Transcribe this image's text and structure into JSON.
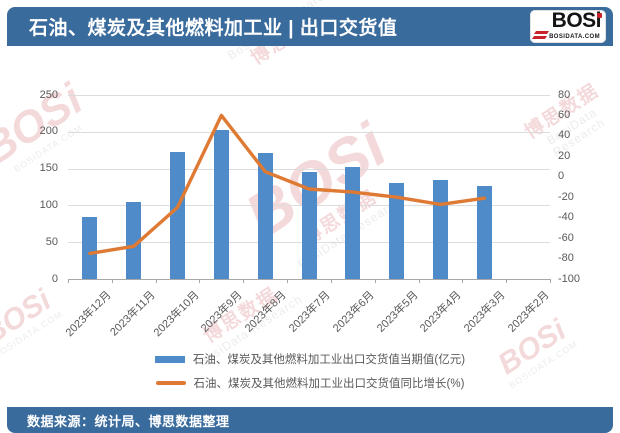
{
  "header": {
    "title": "石油、煤炭及其他燃料加工业 | 出口交货值"
  },
  "logo": {
    "brand": "BOSi",
    "site": "BOSIDATA.COM"
  },
  "watermark": {
    "brand": "BOSi",
    "cn": "博思数据",
    "en": "BosiData Research",
    "site": "BOSIDATA.COM"
  },
  "footer": {
    "source": "数据来源：统计局、博思数据整理"
  },
  "colors": {
    "theme_blue": "#3A6B9D",
    "bar": "#4E8BC8",
    "line": "#DE7A33",
    "grid": "#DCDCDC",
    "axis": "#A8A8A8",
    "tick_text": "#595959"
  },
  "chart_data": {
    "type": "bar",
    "subtype": "combo bar+line, dual axis",
    "title": "石油、煤炭及其他燃料加工业 | 出口交货值",
    "categories": [
      "2023年12月",
      "2023年11月",
      "2023年10月",
      "2023年9月",
      "2023年8月",
      "2023年7月",
      "2023年6月",
      "2023年5月",
      "2023年4月",
      "2023年3月",
      "2023年2月"
    ],
    "series": [
      {
        "name": "石油、煤炭及其他燃料加工业出口交货值当期值(亿元)",
        "type": "bar",
        "axis": "left",
        "color": "#4E8BC8",
        "values": [
          84,
          105,
          173,
          202,
          171,
          146,
          152,
          131,
          134,
          126,
          null
        ]
      },
      {
        "name": "石油、煤炭及其他燃料加工业出口交货值同比增长(%)",
        "type": "line",
        "axis": "right",
        "color": "#DE7A33",
        "values": [
          -75,
          -68,
          -30,
          60,
          5,
          -12,
          -15,
          -20,
          -27,
          -21,
          null
        ]
      }
    ],
    "left_axis": {
      "min": 0,
      "max": 250,
      "ticks": [
        0,
        50,
        100,
        150,
        200,
        250
      ]
    },
    "right_axis": {
      "min": -100,
      "max": 80,
      "ticks": [
        -100,
        -80,
        -60,
        -40,
        -20,
        0,
        20,
        40,
        60,
        80
      ]
    },
    "grid": true,
    "legend_position": "bottom"
  }
}
